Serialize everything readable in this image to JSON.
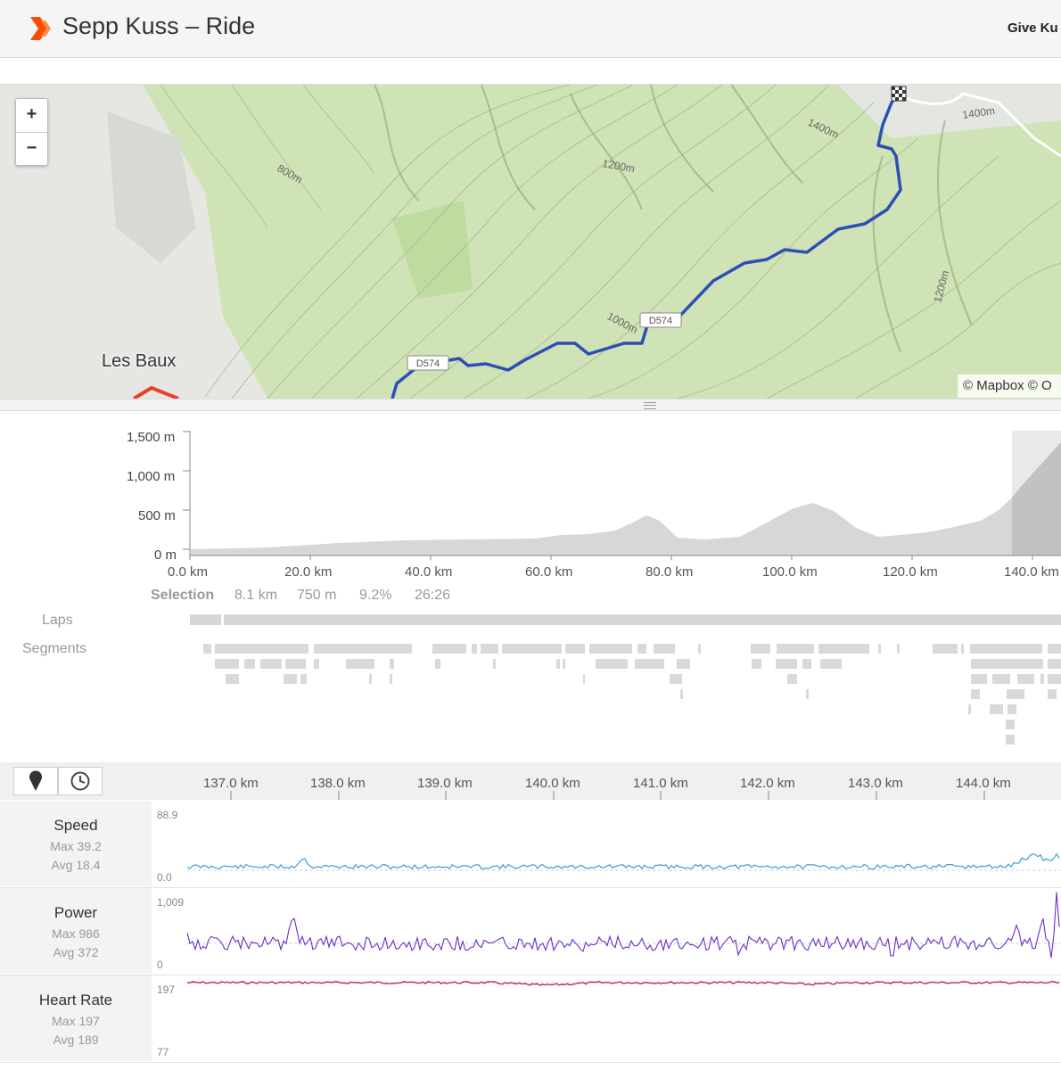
{
  "header": {
    "title": "Sepp Kuss – Ride",
    "kudos_label": "Give Ku"
  },
  "map": {
    "zoom_in": "+",
    "zoom_out": "−",
    "town_label": "Les Baux",
    "attribution": "© Mapbox © O",
    "contour_labels": [
      "1400m",
      "1400m",
      "1200m",
      "800m",
      "1200m",
      "1000m"
    ],
    "road_labels": [
      "D574",
      "D574"
    ],
    "route_color": "#2b4fb6",
    "other_route_color": "#e8412b"
  },
  "elevation": {
    "y_ticks": [
      "1,500 m",
      "1,000 m",
      "500 m",
      "0 m"
    ],
    "x_ticks": [
      "0.0 km",
      "20.0 km",
      "40.0 km",
      "60.0 km",
      "80.0 km",
      "100.0 km",
      "120.0 km",
      "140.0 km"
    ],
    "selection": {
      "label": "Selection",
      "distance": "8.1 km",
      "elevation": "750 m",
      "grade": "9.2%",
      "time": "26:26"
    },
    "laps_label": "Laps",
    "segments_label": "Segments"
  },
  "streams_toolbar": {
    "distance_icon": "map-pin-icon",
    "time_icon": "clock-icon",
    "km_ticks": [
      "137.0 km",
      "138.0 km",
      "139.0 km",
      "140.0 km",
      "141.0 km",
      "142.0 km",
      "143.0 km",
      "144.0 km"
    ]
  },
  "streams": [
    {
      "name": "Speed",
      "max": "Max 39.2",
      "avg": "Avg 18.4",
      "scale_max": "88.9",
      "scale_min": "0.0",
      "color": "#3d9ad9"
    },
    {
      "name": "Power",
      "max": "Max 986",
      "avg": "Avg 372",
      "scale_max": "1,009",
      "scale_min": "0",
      "color": "#6a2fc9"
    },
    {
      "name": "Heart Rate",
      "max": "Max 197",
      "avg": "Avg 189",
      "scale_max": "197",
      "scale_min": "77",
      "color": "#c4264f"
    }
  ]
}
